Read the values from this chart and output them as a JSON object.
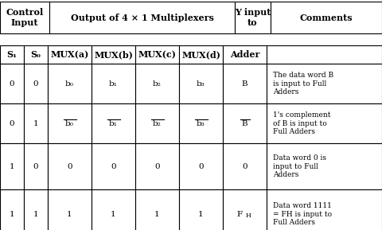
{
  "title_row": {
    "col1": "Control\nInput",
    "col2": "Output of 4 × 1 Multiplexers",
    "col3": "Y input\nto",
    "col4": "Comments"
  },
  "header_row": [
    "S₁",
    "S₀",
    "MUX(a)",
    "MUX(b)",
    "MUX(c)",
    "MUX(d)",
    "Adder",
    ""
  ],
  "data_rows": [
    {
      "s1": "0",
      "s0": "0",
      "muxa": "b₀",
      "muxb": "b₁",
      "muxc": "b₂",
      "muxd": "b₃",
      "adder": "B",
      "comment": "The data word B\nis input to Full\nAdders",
      "overline": [
        false,
        false,
        false,
        false,
        false
      ]
    },
    {
      "s1": "0",
      "s0": "1",
      "muxa": "b₀",
      "muxb": "b₁",
      "muxc": "b₂",
      "muxd": "b₃",
      "adder": "B",
      "comment": "1's complement\nof B is input to\nFull Adders",
      "overline": [
        true,
        true,
        true,
        true,
        true
      ]
    },
    {
      "s1": "1",
      "s0": "0",
      "muxa": "0",
      "muxb": "0",
      "muxc": "0",
      "muxd": "0",
      "adder": "0",
      "comment": "Data word 0 is\ninput to Full\nAdders",
      "overline": [
        false,
        false,
        false,
        false,
        false
      ]
    },
    {
      "s1": "1",
      "s0": "1",
      "muxa": "1",
      "muxb": "1",
      "muxc": "1",
      "muxd": "1",
      "adder": "FH",
      "comment": "Data word 1111\n= FH is input to\nFull Adders",
      "overline": [
        false,
        false,
        false,
        false,
        false
      ]
    }
  ],
  "bg_color": "#ffffff",
  "header_bg": "#ffffff",
  "border_color": "#000000",
  "font_size": 7.5,
  "header_font_size": 8.0
}
